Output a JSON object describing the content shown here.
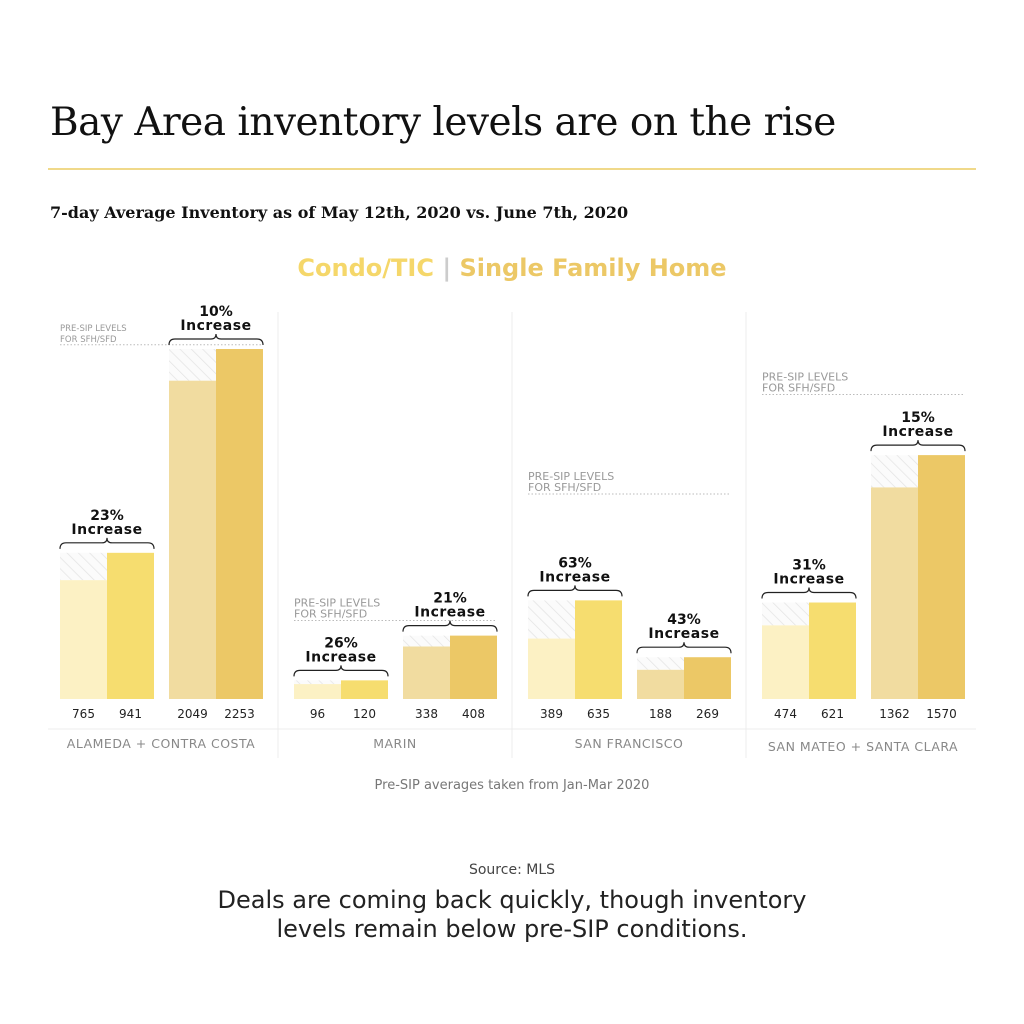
{
  "title": "Bay Area inventory levels are on the rise",
  "subtitle": "7-day Average Inventory as of May 12th, 2020 vs. June 7th, 2020",
  "legend": {
    "condo": "Condo/TIC",
    "separator": "|",
    "sfh": "Single Family Home"
  },
  "colors": {
    "condo_before": "#fcf1c4",
    "condo_after": "#f6dd6f",
    "sfh_before": "#f1dca0",
    "sfh_after": "#ecc866",
    "condo_legend": "#f5d76a",
    "sfh_legend": "#ecc866",
    "rule": "#f0d98a"
  },
  "presip_label": [
    "PRE-SIP LEVELS",
    "FOR SFH/SFD"
  ],
  "increase_word": "Increase",
  "pre_sip_note": "Pre-SIP averages taken from Jan-Mar 2020",
  "source": "Source:  MLS",
  "footer": [
    "Deals are coming back quickly, though inventory",
    "levels remain below pre-SIP conditions."
  ],
  "chart_data": {
    "type": "bar",
    "title": "7-day Average Inventory as of May 12th, 2020 vs. June 7th, 2020",
    "categories": [
      "ALAMEDA + CONTRA COSTA",
      "MARIN",
      "SAN FRANCISCO",
      "SAN MATEO + SANTA CLARA"
    ],
    "series": [
      {
        "name": "Condo/TIC",
        "before": [
          765,
          96,
          389,
          474
        ],
        "after": [
          941,
          120,
          635,
          621
        ],
        "increase": [
          "23%",
          "26%",
          "63%",
          "31%"
        ]
      },
      {
        "name": "Single Family Home",
        "before": [
          2049,
          338,
          188,
          1362
        ],
        "after": [
          2253,
          408,
          269,
          1570
        ],
        "increase": [
          "10%",
          "21%",
          "43%",
          "15%"
        ]
      }
    ],
    "pre_sip_sfh_level_estimate": [
      2280,
      505,
      1320,
      1960
    ],
    "ylim": [
      0,
      2300
    ],
    "grid": false
  }
}
